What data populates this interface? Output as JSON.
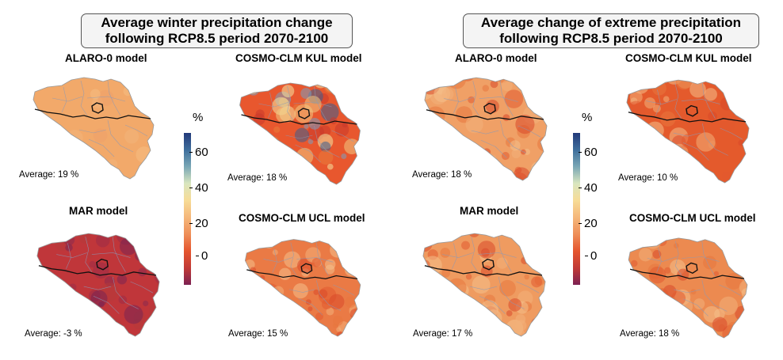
{
  "figures": [
    {
      "title_line1": "Average winter precipitation change",
      "title_line2": "following RCP8.5 period 2070-2100",
      "panels": [
        {
          "model": "ALARO-0 model",
          "average_label": "Average: 19 %",
          "average_value": 19,
          "base_color": "#f2a96a",
          "variation": "smooth"
        },
        {
          "model": "COSMO-CLM KUL model",
          "average_label": "Average: 18 %",
          "average_value": 18,
          "base_color": "#e8572e",
          "variation": "patchy"
        },
        {
          "model": "MAR model",
          "average_label": "Average: -3 %",
          "average_value": -3,
          "base_color": "#c0363a",
          "variation": "dark"
        },
        {
          "model": "COSMO-CLM UCL model",
          "average_label": "Average: 15 %",
          "average_value": 15,
          "base_color": "#ea7a45",
          "variation": "mottled"
        }
      ]
    },
    {
      "title_line1": "Average change of extreme precipitation",
      "title_line2": "following RCP8.5 period 2070-2100",
      "panels": [
        {
          "model": "ALARO-0 model",
          "average_label": "Average: 18 %",
          "average_value": 18,
          "base_color": "#f0a066",
          "variation": "mottled"
        },
        {
          "model": "COSMO-CLM KUL model",
          "average_label": "Average: 10 %",
          "average_value": 10,
          "base_color": "#e45a2c",
          "variation": "mottled"
        },
        {
          "model": "MAR model",
          "average_label": "Average: 17 %",
          "average_value": 17,
          "base_color": "#ef9b60",
          "variation": "mottled"
        },
        {
          "model": "COSMO-CLM UCL model",
          "average_label": "Average: 18 %",
          "average_value": 18,
          "base_color": "#ec8a50",
          "variation": "mottled"
        }
      ]
    }
  ],
  "colorbar": {
    "unit": "%",
    "ticks": [
      "60",
      "40",
      "20",
      "0"
    ],
    "range": [
      -15,
      70
    ],
    "colors": [
      "#233a7a",
      "#3e6e9c",
      "#79a7b5",
      "#d9e6bf",
      "#f7dc97",
      "#f5b77a",
      "#ee8e58",
      "#e5552e",
      "#c13a36",
      "#7c2152"
    ]
  }
}
